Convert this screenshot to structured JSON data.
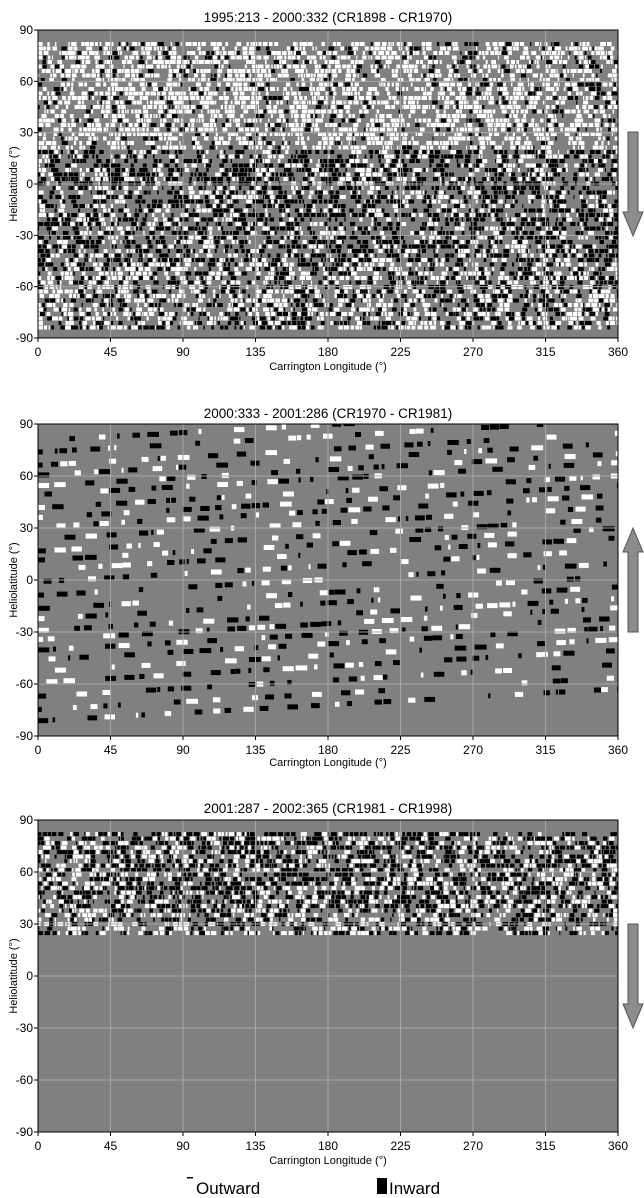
{
  "colors": {
    "background": "#808080",
    "outward": "#ffffff",
    "inward": "#000000",
    "arrow": "#8c8c8c",
    "grid": "#a6a6a6"
  },
  "legend": {
    "outward_label": "Outward",
    "inward_label": "Inward"
  },
  "chart_data": [
    {
      "type": "heatmap",
      "title": "1995:213 - 2000:332 (CR1898 - CR1970)",
      "xlabel": "Carrington Longitude (°)",
      "ylabel": "Heliolatitude (°)",
      "xlim": [
        0,
        360
      ],
      "ylim": [
        -90,
        90
      ],
      "x_ticks": [
        "0",
        "45",
        "90",
        "135",
        "180",
        "225",
        "270",
        "315",
        "360"
      ],
      "y_ticks": [
        "90",
        "60",
        "30",
        "0",
        "-30",
        "-60",
        "-90"
      ],
      "grid": true,
      "arrow_direction": "down",
      "latitude_coverage": [
        -85,
        83
      ]
    },
    {
      "type": "heatmap",
      "title": "2000:333 - 2001:286 (CR1970 - CR1981)",
      "xlabel": "Carrington Longitude (°)",
      "ylabel": "Heliolatitude (°)",
      "xlim": [
        0,
        360
      ],
      "ylim": [
        -90,
        90
      ],
      "x_ticks": [
        "0",
        "45",
        "90",
        "135",
        "180",
        "225",
        "270",
        "315",
        "360"
      ],
      "y_ticks": [
        "90",
        "60",
        "30",
        "0",
        "-30",
        "-60",
        "-90"
      ],
      "grid": true,
      "arrow_direction": "up",
      "latitude_coverage": [
        -82,
        82
      ]
    },
    {
      "type": "heatmap",
      "title": "2001:287 - 2002:365 (CR1981 - CR1998)",
      "xlabel": "Carrington Longitude (°)",
      "ylabel": "Heliolatitude (°)",
      "xlim": [
        0,
        360
      ],
      "ylim": [
        -90,
        90
      ],
      "x_ticks": [
        "0",
        "45",
        "90",
        "135",
        "180",
        "225",
        "270",
        "315",
        "360"
      ],
      "y_ticks": [
        "90",
        "60",
        "30",
        "0",
        "-30",
        "-60",
        "-90"
      ],
      "grid": true,
      "arrow_direction": "down",
      "latitude_coverage": [
        25,
        83
      ]
    }
  ]
}
